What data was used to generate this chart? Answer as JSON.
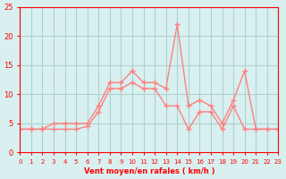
{
  "xlabel": "Vent moyen/en rafales ( km/h )",
  "x": [
    0,
    1,
    2,
    3,
    4,
    5,
    6,
    7,
    8,
    9,
    10,
    11,
    12,
    13,
    14,
    15,
    16,
    17,
    18,
    19,
    20,
    21,
    22,
    23
  ],
  "y_moyen": [
    4,
    4,
    4,
    4,
    4,
    4,
    4.5,
    7,
    11,
    11,
    12,
    11,
    11,
    8,
    8,
    4,
    7,
    7,
    4,
    8,
    4,
    4,
    4,
    4
  ],
  "y_rafales": [
    4,
    4,
    4,
    5,
    5,
    5,
    5,
    8,
    12,
    12,
    14,
    12,
    12,
    11,
    22,
    8,
    9,
    8,
    5,
    9,
    14,
    4,
    4,
    4
  ],
  "line_color": "#ff8080",
  "marker": "+",
  "bg_color": "#d8f0f0",
  "grid_color": "#b0d0d0",
  "axis_color": "#ff0000",
  "text_color": "#ff0000",
  "ylim": [
    0,
    25
  ],
  "xlim": [
    0,
    23
  ],
  "yticks": [
    0,
    5,
    10,
    15,
    20,
    25
  ],
  "xticks": [
    0,
    1,
    2,
    3,
    4,
    5,
    6,
    7,
    8,
    9,
    10,
    11,
    12,
    13,
    14,
    15,
    16,
    17,
    18,
    19,
    20,
    21,
    22,
    23
  ]
}
